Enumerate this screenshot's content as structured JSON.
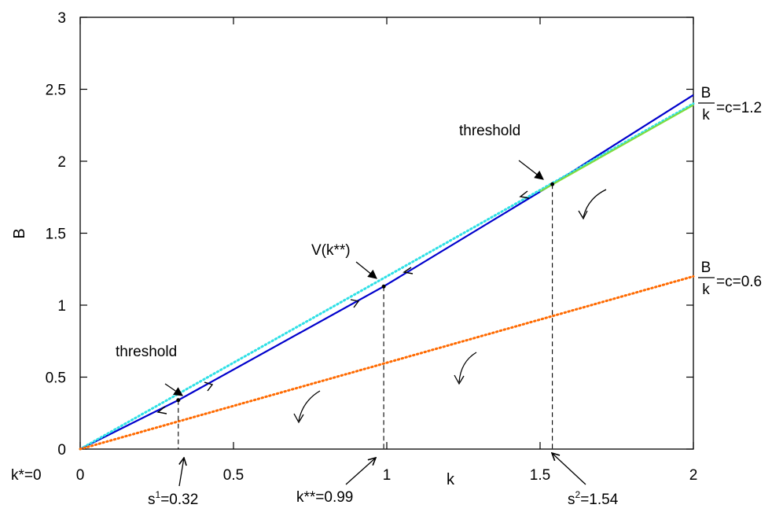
{
  "chart_data": {
    "type": "line",
    "xlabel": "k",
    "ylabel": "B",
    "xlim": [
      0,
      2
    ],
    "ylim": [
      0,
      3
    ],
    "x_ticks": [
      {
        "value": 0,
        "label": "0"
      },
      {
        "value": 0.5,
        "label": "0.5"
      },
      {
        "value": 1,
        "label": "1"
      },
      {
        "value": 1.5,
        "label": "1.5"
      },
      {
        "value": 2,
        "label": "2"
      }
    ],
    "y_ticks": [
      {
        "value": 0,
        "label": "0"
      },
      {
        "value": 0.5,
        "label": "0.5"
      },
      {
        "value": 1,
        "label": "1"
      },
      {
        "value": 1.5,
        "label": "1.5"
      },
      {
        "value": 2,
        "label": "2"
      },
      {
        "value": 2.5,
        "label": "2.5"
      },
      {
        "value": 3,
        "label": "3"
      }
    ],
    "grid": false,
    "series": [
      {
        "color": "#0000cc",
        "style": "solid",
        "x": [
          0,
          0.32,
          0.99,
          1.54,
          2.0
        ],
        "y": [
          0,
          0.34,
          1.13,
          1.84,
          2.46
        ]
      },
      {
        "color": "#2fe0e6",
        "style": "dotted",
        "x": [
          0,
          2
        ],
        "y": [
          0,
          2.4
        ]
      },
      {
        "color": "#ff6a00",
        "style": "dotted",
        "x": [
          0,
          2
        ],
        "y": [
          0,
          1.2
        ]
      },
      {
        "color": "#7fdc3c",
        "style": "solid",
        "x": [
          1.5,
          2.0
        ],
        "y": [
          1.79,
          2.39
        ]
      }
    ],
    "points": [
      {
        "x": 0.32,
        "y": 0.34
      },
      {
        "x": 0.99,
        "y": 1.13
      },
      {
        "x": 1.54,
        "y": 1.84
      }
    ],
    "vlines": [
      {
        "x": 0.32,
        "y_top": 0.34
      },
      {
        "x": 0.99,
        "y_top": 1.13
      },
      {
        "x": 1.54,
        "y_top": 1.84
      }
    ],
    "annotations": {
      "threshold_low": "threshold",
      "threshold_high": "threshold",
      "v_label": "V(k**)",
      "kstar": "k*=0",
      "s1_base": "s",
      "s1_sup": "1",
      "s1_value": "=0.32",
      "kstarstar": "k**=0.99",
      "s2_base": "s",
      "s2_sup": "2",
      "s2_value": "=1.54",
      "frac_num": "B",
      "frac_den": "k",
      "c_high": "=c=1.2",
      "c_low": "=c=0.6"
    }
  }
}
